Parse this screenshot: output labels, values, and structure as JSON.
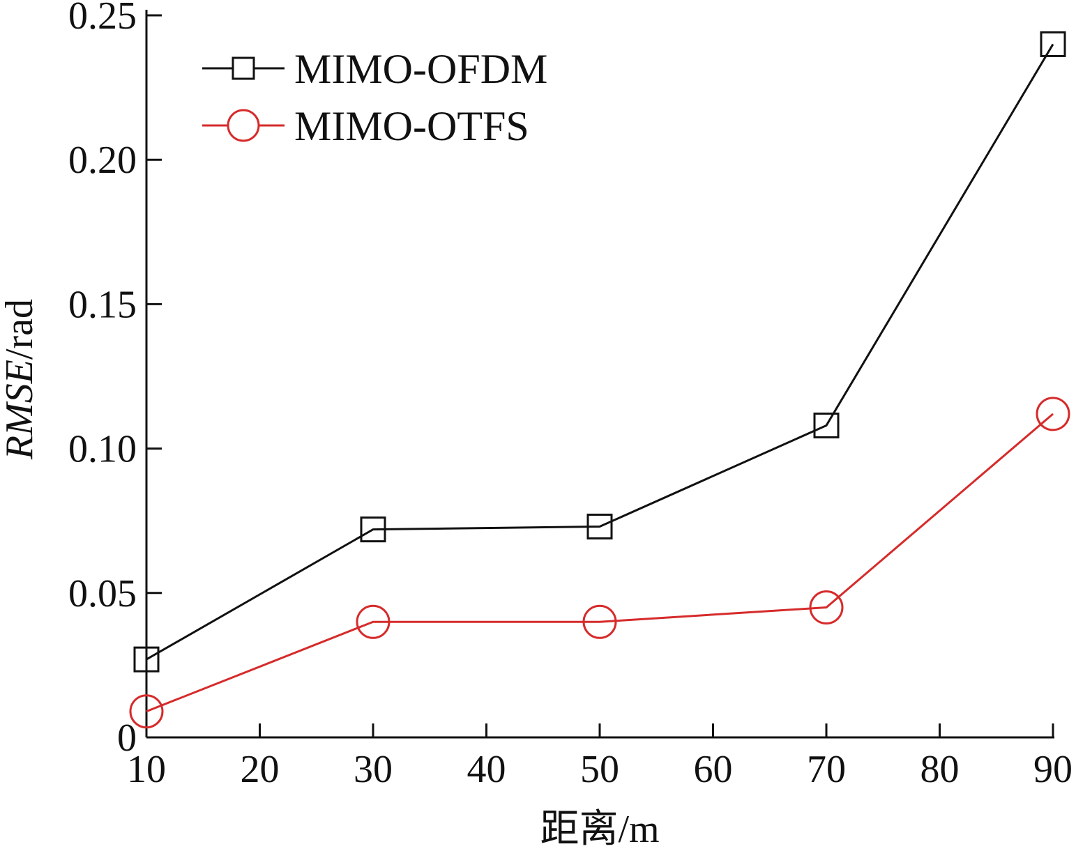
{
  "chart_data": {
    "type": "line",
    "x": [
      10,
      30,
      50,
      70,
      90
    ],
    "series": [
      {
        "name": "MIMO-OFDM",
        "values": [
          0.027,
          0.072,
          0.073,
          0.108,
          0.24
        ],
        "color": "#111111",
        "marker": "square"
      },
      {
        "name": "MIMO-OTFS",
        "values": [
          0.009,
          0.04,
          0.04,
          0.045,
          0.112
        ],
        "color": "#d62b2b",
        "marker": "circle"
      }
    ],
    "xlabel": "距离/m",
    "ylabel_italic": "RMSE",
    "ylabel_unit": "/rad",
    "xlim": [
      10,
      90
    ],
    "ylim": [
      0,
      0.25
    ],
    "xticks": [
      10,
      20,
      30,
      40,
      50,
      60,
      70,
      80,
      90
    ],
    "xtick_labels": [
      "10",
      "20",
      "30",
      "40",
      "50",
      "60",
      "70",
      "80",
      "90"
    ],
    "yticks": [
      0,
      0.05,
      0.1,
      0.15,
      0.2,
      0.25
    ],
    "ytick_labels": [
      "0",
      "0.05",
      "0.10",
      "0.15",
      "0.20",
      "0.25"
    ],
    "grid": false,
    "legend_position": "top-left"
  }
}
